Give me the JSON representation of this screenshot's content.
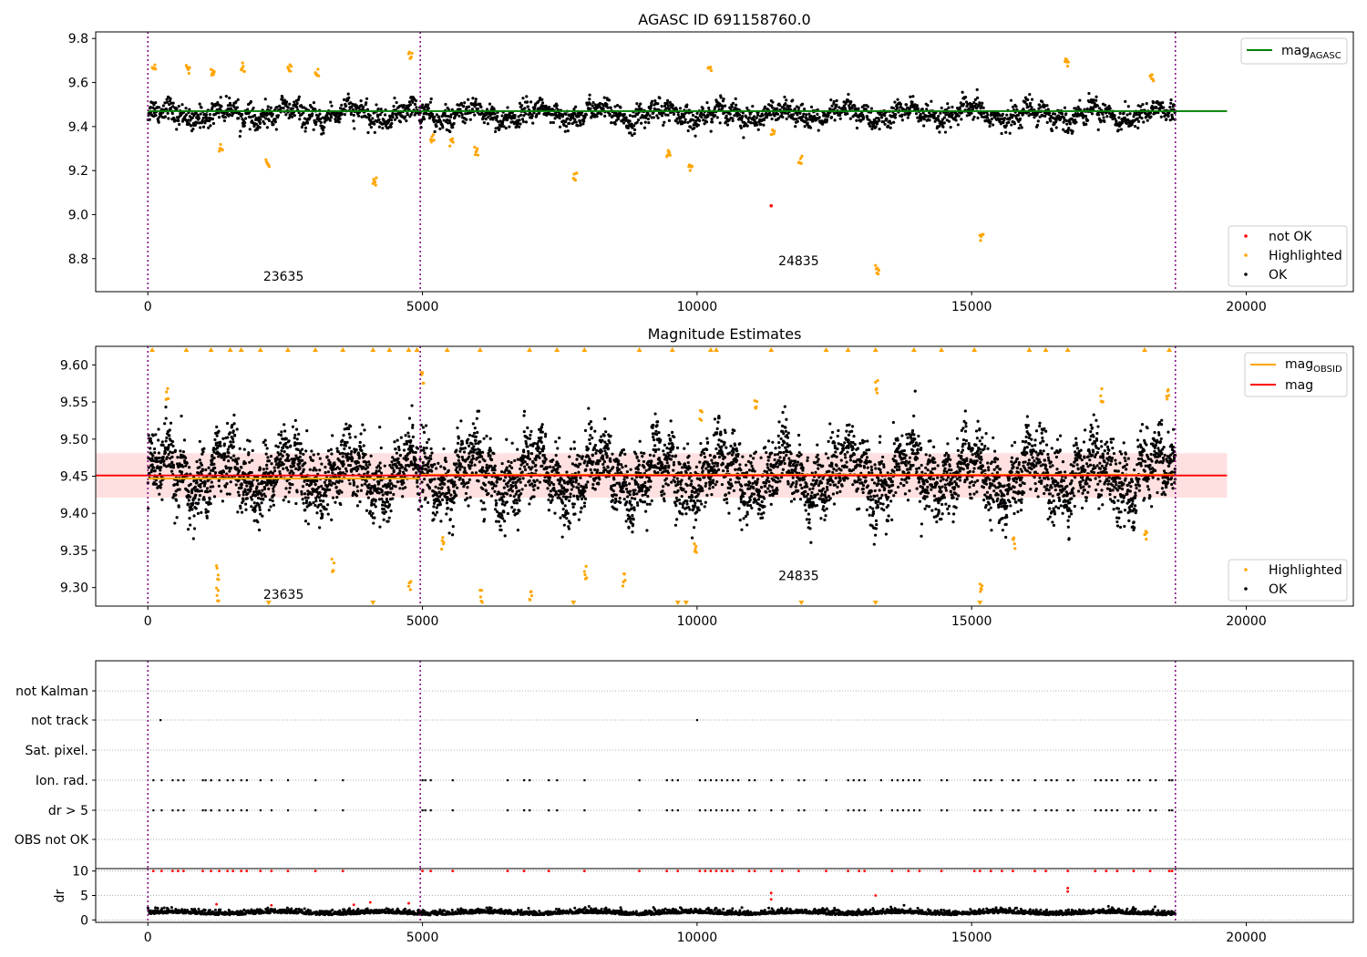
{
  "figure": {
    "title": "AGASC ID 691158760.0",
    "subtitle": "Magnitude Estimates"
  },
  "chart_data": [
    {
      "type": "scatter",
      "title": "AGASC ID 691158760.0",
      "xlim": [
        -950,
        21950
      ],
      "ylim": [
        8.65,
        9.83
      ],
      "x_ticks": [
        0,
        5000,
        10000,
        15000,
        20000
      ],
      "y_ticks": [
        8.8,
        9.0,
        9.2,
        9.4,
        9.6,
        9.8
      ],
      "obs_boundaries": [
        0,
        4960,
        18710
      ],
      "obs_labels": [
        {
          "text": "23635",
          "x": 2470,
          "y": 8.7
        },
        {
          "text": "24835",
          "x": 11850,
          "y": 8.77
        }
      ],
      "reference_lines": [
        {
          "name": "mag_AGASC",
          "y": 9.47,
          "x": [
            0,
            19650
          ],
          "color": "#008000"
        }
      ],
      "series": [
        {
          "name": "not OK",
          "color": "#ff0000",
          "points": [
            [
              11350,
              9.04
            ]
          ]
        },
        {
          "name": "Highlighted",
          "color": "#ffa500",
          "points": [
            [
              80,
              9.68
            ],
            [
              700,
              9.66
            ],
            [
              1150,
              9.65
            ],
            [
              1300,
              9.3
            ],
            [
              1700,
              9.67
            ],
            [
              2150,
              9.23
            ],
            [
              2550,
              9.67
            ],
            [
              3050,
              9.65
            ],
            [
              4100,
              9.15
            ],
            [
              4750,
              9.72
            ],
            [
              5150,
              9.35
            ],
            [
              5500,
              9.33
            ],
            [
              5950,
              9.29
            ],
            [
              7750,
              9.17
            ],
            [
              9450,
              9.28
            ],
            [
              9850,
              9.22
            ],
            [
              10200,
              9.65
            ],
            [
              11350,
              9.38
            ],
            [
              11850,
              9.25
            ],
            [
              13250,
              8.75
            ],
            [
              15150,
              8.9
            ],
            [
              16700,
              9.69
            ],
            [
              18250,
              9.62
            ]
          ]
        },
        {
          "name": "OK",
          "color": "#000000",
          "mean": 9.455,
          "spread": 0.045
        }
      ],
      "legend": {
        "entries": [
          "mag_AGASC",
          "not OK",
          "Highlighted",
          "OK"
        ],
        "line_position": "top-right",
        "marker_position": "lower-right"
      }
    },
    {
      "type": "scatter",
      "title": "Magnitude Estimates",
      "xlim": [
        -950,
        21950
      ],
      "ylim": [
        9.275,
        9.625
      ],
      "x_ticks": [
        0,
        5000,
        10000,
        15000,
        20000
      ],
      "y_ticks": [
        9.3,
        9.35,
        9.4,
        9.45,
        9.5,
        9.55,
        9.6
      ],
      "obs_boundaries": [
        0,
        4960,
        18710
      ],
      "obs_labels": [
        {
          "text": "23635",
          "x": 2470,
          "y": 9.285
        },
        {
          "text": "24835",
          "x": 11850,
          "y": 9.31
        }
      ],
      "reference_lines": [
        {
          "name": "mag_OBSID",
          "segments": [
            {
              "x": [
                0,
                4960
              ],
              "y": 9.447
            },
            {
              "x": [
                4960,
                18710
              ],
              "y": 9.452
            }
          ],
          "color": "#ffa500"
        },
        {
          "name": "mag",
          "y": 9.451,
          "x": [
            -950,
            19650
          ],
          "color": "#ff0000"
        }
      ],
      "band": {
        "x": [
          -950,
          19650
        ],
        "y": [
          9.421,
          9.481
        ],
        "color": "#ffcccc"
      },
      "series": [
        {
          "name": "Highlighted",
          "color": "#ffa500",
          "points": [
            [
              330,
              9.56
            ],
            [
              1250,
              9.32
            ],
            [
              1250,
              9.29
            ],
            [
              3350,
              9.33
            ],
            [
              4750,
              9.3
            ],
            [
              4980,
              9.58
            ],
            [
              5350,
              9.36
            ],
            [
              6050,
              9.29
            ],
            [
              6950,
              9.29
            ],
            [
              7950,
              9.32
            ],
            [
              8650,
              9.31
            ],
            [
              9950,
              9.35
            ],
            [
              10050,
              9.53
            ],
            [
              11050,
              9.55
            ],
            [
              13250,
              9.57
            ],
            [
              15150,
              9.3
            ],
            [
              15750,
              9.36
            ],
            [
              17350,
              9.56
            ],
            [
              18150,
              9.37
            ],
            [
              18550,
              9.56
            ]
          ]
        },
        {
          "name": "OK",
          "color": "#000000",
          "mean": 9.452,
          "spread": 0.04
        }
      ],
      "clipped_markers": {
        "top_x": [
          80,
          700,
          1150,
          1500,
          1700,
          2050,
          2550,
          3050,
          3550,
          4100,
          4400,
          4750,
          4900,
          5450,
          6050,
          6950,
          7450,
          7950,
          8950,
          9550,
          10250,
          10350,
          11350,
          12350,
          12750,
          13250,
          13950,
          14450,
          15050,
          16050,
          16350,
          16750,
          18150,
          18600
        ],
        "bottom_x": [
          2200,
          4100,
          7750,
          9650,
          9800,
          11900,
          13250,
          15150
        ]
      },
      "legend": {
        "entries": [
          "mag_OBSID",
          "mag",
          "Highlighted",
          "OK"
        ],
        "line_position": "top-right",
        "marker_position": "lower-right"
      }
    },
    {
      "type": "scatter",
      "xlim": [
        -950,
        21950
      ],
      "flag_rows": [
        "not Kalman",
        "not track",
        "Sat. pixel.",
        "Ion. rad.",
        "dr > 5",
        "OBS not OK"
      ],
      "x_ticks": [
        0,
        5000,
        10000,
        15000,
        20000
      ],
      "obs_boundaries": [
        0,
        4960,
        18710
      ],
      "flags": {
        "not track": [
          230,
          10000
        ],
        "Ion. rad.": [
          100,
          250,
          450,
          550,
          650,
          1000,
          1050,
          1150,
          1150,
          1300,
          1450,
          1550,
          1700,
          1800,
          2050,
          2250,
          2550,
          3050,
          3550,
          5000,
          5050,
          5150,
          5550,
          6550,
          6850,
          6950,
          7300,
          7450,
          7950,
          8950,
          9450,
          9550,
          9650,
          10050,
          10150,
          10250,
          10350,
          10450,
          10550,
          10650,
          10750,
          10950,
          11050,
          11350,
          11550,
          11850,
          11950,
          12350,
          12750,
          12850,
          12950,
          13050,
          13350,
          13550,
          13650,
          13750,
          13850,
          13950,
          14050,
          14450,
          14550,
          15050,
          15150,
          15250,
          15350,
          15550,
          15750,
          15850,
          16150,
          16350,
          16450,
          16550,
          16750,
          16850,
          17250,
          17350,
          17450,
          17550,
          17650,
          17850,
          17950,
          18050,
          18250,
          18350,
          18600,
          18650
        ]
      },
      "dr_panel": {
        "ylabel": "dr",
        "ylim": [
          -0.5,
          10.5
        ],
        "y_ticks": [
          0,
          5,
          10
        ],
        "ok_mean": 1.2,
        "red_high_x": [
          100,
          250,
          450,
          550,
          650,
          1000,
          1150,
          1300,
          1450,
          1550,
          1700,
          1800,
          2050,
          2250,
          2550,
          3050,
          3550,
          5000,
          5150,
          5550,
          6550,
          6850,
          7300,
          7950,
          8950,
          9450,
          9650,
          10050,
          10150,
          10250,
          10350,
          10450,
          10550,
          10650,
          10950,
          11050,
          11350,
          11550,
          11850,
          12350,
          12750,
          12950,
          13050,
          13550,
          13850,
          14050,
          14450,
          15050,
          15150,
          15350,
          15550,
          15750,
          16150,
          16350,
          16750,
          17250,
          17450,
          17650,
          17950,
          18250,
          18600,
          18650
        ],
        "red_mid": [
          [
            11350,
            5.5
          ],
          [
            11350,
            4.2
          ],
          [
            13250,
            5.0
          ],
          [
            16750,
            6.5
          ],
          [
            16750,
            5.8
          ],
          [
            1250,
            3.2
          ],
          [
            3750,
            3.1
          ],
          [
            4050,
            3.6
          ],
          [
            4750,
            3.4
          ],
          [
            2250,
            3.0
          ]
        ]
      }
    }
  ]
}
